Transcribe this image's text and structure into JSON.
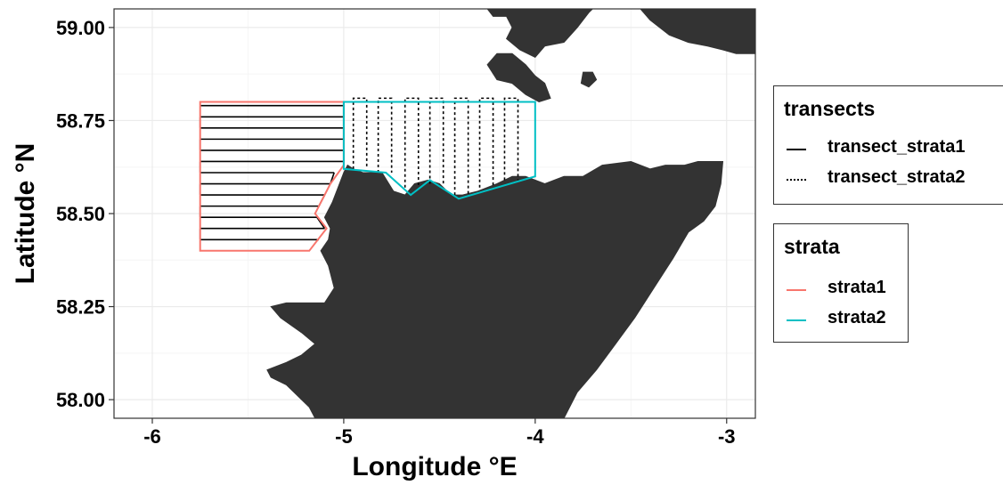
{
  "chart_data": {
    "type": "map",
    "xlabel": "Longitude °E",
    "ylabel": "Latitude °N",
    "x_ticks": [
      "-6",
      "-5",
      "-4",
      "-3"
    ],
    "y_ticks": [
      "58.00",
      "58.25",
      "58.50",
      "58.75",
      "59.00"
    ],
    "xlim": [
      -6.2,
      -2.85
    ],
    "ylim": [
      57.95,
      59.05
    ],
    "grid": true,
    "strata": [
      {
        "name": "strata1",
        "color": "#F8766D",
        "polygon": [
          [
            -5.75,
            58.8
          ],
          [
            -5.0,
            58.8
          ],
          [
            -5.0,
            58.63
          ],
          [
            -5.07,
            58.58
          ],
          [
            -5.15,
            58.5
          ],
          [
            -5.09,
            58.46
          ],
          [
            -5.18,
            58.4
          ],
          [
            -5.75,
            58.4
          ]
        ]
      },
      {
        "name": "strata2",
        "color": "#00BFC4",
        "polygon": [
          [
            -5.0,
            58.8
          ],
          [
            -4.0,
            58.8
          ],
          [
            -4.0,
            58.6
          ],
          [
            -4.4,
            58.54
          ],
          [
            -4.55,
            58.59
          ],
          [
            -4.65,
            58.55
          ],
          [
            -4.78,
            58.61
          ],
          [
            -5.0,
            58.62
          ]
        ]
      }
    ],
    "transects": [
      {
        "name": "transect_strata1",
        "style": "solid",
        "orientation": "horizontal",
        "x_range": [
          -5.75,
          -5.0
        ],
        "lines": [
          {
            "lat": 58.79,
            "x_end": -5.0
          },
          {
            "lat": 58.76,
            "x_end": -5.0
          },
          {
            "lat": 58.73,
            "x_end": -5.0
          },
          {
            "lat": 58.7,
            "x_end": -5.0
          },
          {
            "lat": 58.67,
            "x_end": -5.0
          },
          {
            "lat": 58.64,
            "x_end": -5.0
          },
          {
            "lat": 58.61,
            "x_end": -5.05
          },
          {
            "lat": 58.58,
            "x_end": -5.07
          },
          {
            "lat": 58.55,
            "x_end": -5.1
          },
          {
            "lat": 58.52,
            "x_end": -5.13
          },
          {
            "lat": 58.49,
            "x_end": -5.14
          },
          {
            "lat": 58.46,
            "x_end": -5.1
          },
          {
            "lat": 58.43,
            "x_end": -5.13
          }
        ]
      },
      {
        "name": "transect_strata2",
        "style": "dotted",
        "orientation": "vertical",
        "y_top": 58.81,
        "pairs": [
          {
            "x1": -4.95,
            "x2": -4.88,
            "y_bottom": 58.62
          },
          {
            "x1": -4.82,
            "x2": -4.75,
            "y_bottom": 58.61
          },
          {
            "x1": -4.68,
            "x2": -4.61,
            "y_bottom": 58.57
          },
          {
            "x1": -4.55,
            "x2": -4.48,
            "y_bottom": 58.58
          },
          {
            "x1": -4.42,
            "x2": -4.35,
            "y_bottom": 58.55
          },
          {
            "x1": -4.29,
            "x2": -4.22,
            "y_bottom": 58.57
          },
          {
            "x1": -4.16,
            "x2": -4.09,
            "y_bottom": 58.59
          }
        ]
      }
    ],
    "land": [
      [
        [
          -4.98,
          58.63
        ],
        [
          -4.95,
          58.62
        ],
        [
          -4.9,
          58.61
        ],
        [
          -4.85,
          58.61
        ],
        [
          -4.8,
          58.61
        ],
        [
          -4.74,
          58.56
        ],
        [
          -4.68,
          58.55
        ],
        [
          -4.63,
          58.58
        ],
        [
          -4.56,
          58.59
        ],
        [
          -4.5,
          58.58
        ],
        [
          -4.44,
          58.55
        ],
        [
          -4.38,
          58.55
        ],
        [
          -4.3,
          58.56
        ],
        [
          -4.2,
          58.58
        ],
        [
          -4.12,
          58.6
        ],
        [
          -4.05,
          58.6
        ],
        [
          -3.95,
          58.58
        ],
        [
          -3.85,
          58.6
        ],
        [
          -3.75,
          58.6
        ],
        [
          -3.65,
          58.63
        ],
        [
          -3.5,
          58.64
        ],
        [
          -3.4,
          58.62
        ],
        [
          -3.32,
          58.63
        ],
        [
          -3.22,
          58.63
        ],
        [
          -3.15,
          58.64
        ],
        [
          -3.07,
          58.64
        ],
        [
          -3.02,
          58.64
        ],
        [
          -3.03,
          58.58
        ],
        [
          -3.06,
          58.52
        ],
        [
          -3.12,
          58.48
        ],
        [
          -3.2,
          58.45
        ],
        [
          -3.28,
          58.38
        ],
        [
          -3.38,
          58.3
        ],
        [
          -3.48,
          58.22
        ],
        [
          -3.58,
          58.15
        ],
        [
          -3.68,
          58.08
        ],
        [
          -3.78,
          58.02
        ],
        [
          -3.85,
          57.95
        ],
        [
          -5.15,
          57.95
        ],
        [
          -5.18,
          57.98
        ],
        [
          -5.3,
          58.04
        ],
        [
          -5.38,
          58.06
        ],
        [
          -5.4,
          58.08
        ],
        [
          -5.3,
          58.1
        ],
        [
          -5.22,
          58.12
        ],
        [
          -5.15,
          58.15
        ],
        [
          -5.22,
          58.18
        ],
        [
          -5.33,
          58.22
        ],
        [
          -5.38,
          58.25
        ],
        [
          -5.3,
          58.26
        ],
        [
          -5.2,
          58.26
        ],
        [
          -5.1,
          58.26
        ],
        [
          -5.05,
          58.3
        ],
        [
          -5.08,
          58.36
        ],
        [
          -5.12,
          58.4
        ],
        [
          -5.08,
          58.43
        ],
        [
          -5.07,
          58.46
        ],
        [
          -5.1,
          58.49
        ],
        [
          -5.06,
          58.53
        ],
        [
          -5.03,
          58.57
        ],
        [
          -5.0,
          58.61
        ]
      ],
      [
        [
          -4.25,
          59.05
        ],
        [
          -4.22,
          59.03
        ],
        [
          -4.15,
          59.03
        ],
        [
          -4.12,
          59.0
        ],
        [
          -4.15,
          58.97
        ],
        [
          -4.08,
          58.94
        ],
        [
          -4.0,
          58.92
        ],
        [
          -3.95,
          58.95
        ],
        [
          -3.85,
          58.96
        ],
        [
          -3.78,
          59.0
        ],
        [
          -3.72,
          59.04
        ],
        [
          -3.7,
          59.05
        ]
      ],
      [
        [
          -3.45,
          59.05
        ],
        [
          -3.4,
          59.02
        ],
        [
          -3.3,
          58.98
        ],
        [
          -3.2,
          58.96
        ],
        [
          -3.1,
          58.95
        ],
        [
          -3.02,
          58.94
        ],
        [
          -2.95,
          58.93
        ],
        [
          -2.85,
          58.93
        ],
        [
          -2.85,
          59.05
        ]
      ],
      [
        [
          -4.25,
          58.9
        ],
        [
          -4.2,
          58.93
        ],
        [
          -4.12,
          58.93
        ],
        [
          -4.05,
          58.9
        ],
        [
          -4.0,
          58.87
        ],
        [
          -3.95,
          58.85
        ],
        [
          -3.92,
          58.81
        ],
        [
          -3.98,
          58.8
        ],
        [
          -4.05,
          58.82
        ],
        [
          -4.12,
          58.85
        ],
        [
          -4.2,
          58.86
        ]
      ],
      [
        [
          -3.75,
          58.88
        ],
        [
          -3.7,
          58.88
        ],
        [
          -3.68,
          58.86
        ],
        [
          -3.72,
          58.84
        ],
        [
          -3.76,
          58.85
        ]
      ]
    ]
  },
  "legends": [
    {
      "title": "transects",
      "items": [
        {
          "label": "transect_strata1",
          "style": "solid",
          "color": "#000000"
        },
        {
          "label": "transect_strata2",
          "style": "dotted",
          "color": "#000000"
        }
      ]
    },
    {
      "title": "strata",
      "items": [
        {
          "label": "strata1",
          "style": "solid",
          "color": "#F8766D"
        },
        {
          "label": "strata2",
          "style": "solid",
          "color": "#00BFC4"
        }
      ]
    }
  ],
  "colors": {
    "land": "#333333",
    "grid_major": "#EBEBEB",
    "grid_minor": "#F5F5F5",
    "panel_border": "#333333"
  }
}
